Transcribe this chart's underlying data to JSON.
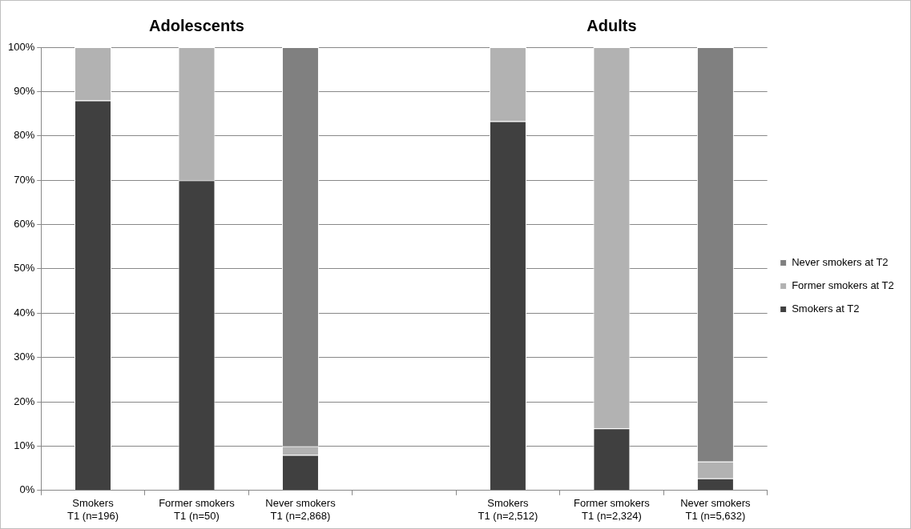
{
  "chart_data": {
    "type": "bar",
    "stacked": true,
    "categories": [
      "Smokers\nT1 (n=196)",
      "Former smokers\nT1 (n=50)",
      "Never smokers\nT1 (n=2,868)",
      null,
      "Smokers\nT1 (n=2,512)",
      "Former smokers\nT1 (n=2,324)",
      "Never smokers\nT1 (n=5,632)"
    ],
    "series": [
      {
        "name": "Smokers at T2",
        "color": "#404040",
        "values": [
          88,
          70,
          8,
          null,
          83.3,
          14,
          2.7
        ]
      },
      {
        "name": "Former smokers at T2",
        "color": "#b2b2b2",
        "values": [
          12,
          30,
          2,
          null,
          16.7,
          86,
          3.8
        ]
      },
      {
        "name": "Never smokers at T2",
        "color": "#808080",
        "values": [
          0,
          0,
          90,
          null,
          0,
          0,
          93.5
        ]
      }
    ],
    "ylim": [
      0,
      100
    ],
    "yticks": [
      {
        "value": 0,
        "label": "0%"
      },
      {
        "value": 10,
        "label": "10%"
      },
      {
        "value": 20,
        "label": "20%"
      },
      {
        "value": 30,
        "label": "30%"
      },
      {
        "value": 40,
        "label": "40%"
      },
      {
        "value": 50,
        "label": "50%"
      },
      {
        "value": 60,
        "label": "60%"
      },
      {
        "value": 70,
        "label": "70%"
      },
      {
        "value": 80,
        "label": "80%"
      },
      {
        "value": 90,
        "label": "90%"
      },
      {
        "value": 100,
        "label": "100%"
      }
    ],
    "grid": "y",
    "legend": "right",
    "annotations": [
      "Adolescents",
      "Adults"
    ]
  }
}
